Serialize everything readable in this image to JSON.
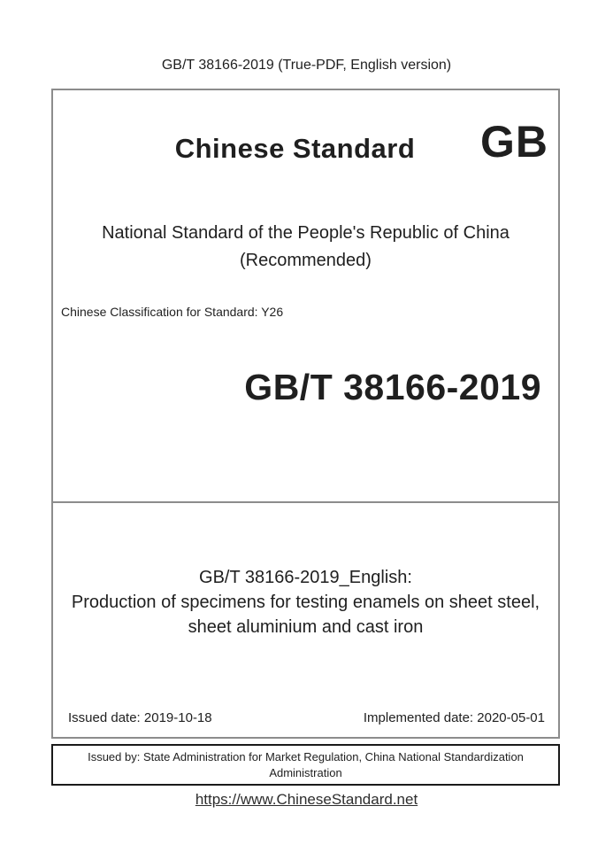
{
  "page": {
    "header_title": "GB/T 38166-2019 (True-PDF, English version)",
    "footer_link": {
      "text": "https://www.ChineseStandard.net",
      "href": "https://www.ChineseStandard.net"
    }
  },
  "cover": {
    "site_name": "Chinese Standard",
    "logo_text": "GB",
    "standard_type_line1": "National Standard of the People's Republic of China",
    "standard_type_line2": "(Recommended)",
    "classification": "Chinese Classification for Standard: Y26",
    "standard_code": "GB/T 38166-2019",
    "english_title": {
      "line1": "GB/T 38166-2019_English:",
      "line2": "Production of specimens for testing enamels on sheet steel,",
      "line3": "sheet aluminium and cast iron"
    },
    "issued_date": "Issued date: 2019-10-18",
    "implemented_date": "Implemented date: 2020-05-01",
    "issued_by": "Issued by: State Administration for Market Regulation, China National Standardization Administration"
  },
  "colors": {
    "text": "#1f1f1f",
    "outer_border": "#8c8c8c",
    "issuer_border": "#1a1a1a",
    "link": "#2d2d2d"
  }
}
